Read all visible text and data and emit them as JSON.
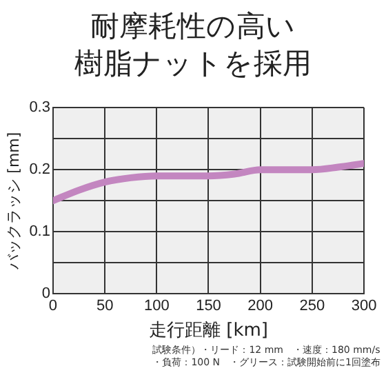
{
  "chart_data": {
    "type": "line",
    "title": "耐摩耗性の高い",
    "subtitle": "樹脂ナットを採用",
    "xlabel": "走行距離 [km]",
    "ylabel": "バックラッシ [mm]",
    "x": [
      0,
      25,
      50,
      75,
      100,
      125,
      150,
      175,
      200,
      225,
      250,
      275,
      300
    ],
    "series": [
      {
        "color": "#c386c0",
        "values": [
          0.15,
          0.167,
          0.18,
          0.187,
          0.19,
          0.19,
          0.19,
          0.193,
          0.2,
          0.2,
          0.2,
          0.204,
          0.21
        ]
      }
    ],
    "xlim": [
      0,
      300
    ],
    "xticks": [
      0,
      50,
      100,
      150,
      200,
      250,
      300
    ],
    "ylim": [
      0,
      0.3
    ],
    "yticks": [
      0,
      {
        "value": 0.05,
        "label": null
      },
      0.1,
      {
        "value": 0.15,
        "label": null
      },
      0.2,
      {
        "value": 0.25,
        "label": null
      },
      0.3
    ],
    "grid": true,
    "legend": false,
    "marker": "none",
    "line_style": "solid",
    "annotations": [
      "試験条件）・リード：12 mm　・速度：180 mm/s",
      "・負荷：100 N　・グリース：試験開始前に1回塗布"
    ]
  }
}
